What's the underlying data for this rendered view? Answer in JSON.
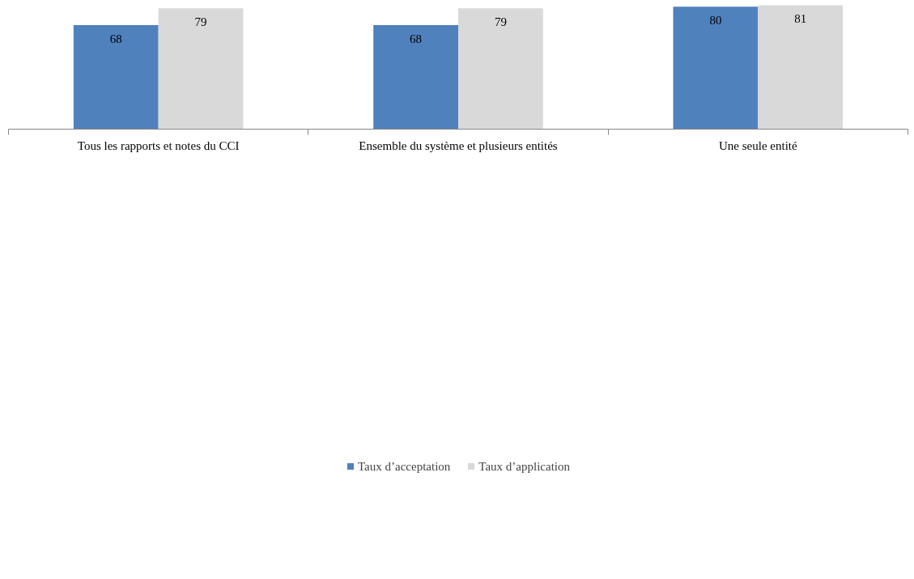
{
  "chart_data": {
    "type": "bar",
    "categories": [
      "Tous les rapports et notes du CCI",
      "Ensemble du système et plusieurs entités",
      "Une seule entité"
    ],
    "series": [
      {
        "name": "Taux d’acceptation",
        "color": "#4f81bd",
        "values": [
          68,
          68,
          80
        ]
      },
      {
        "name": "Taux d’application",
        "color": "#d9d9d9",
        "values": [
          79,
          79,
          81
        ]
      }
    ],
    "ylim": [
      0,
      82
    ],
    "data_labels": true,
    "legend": "bottom",
    "grid": false,
    "tick_labels": "x"
  }
}
